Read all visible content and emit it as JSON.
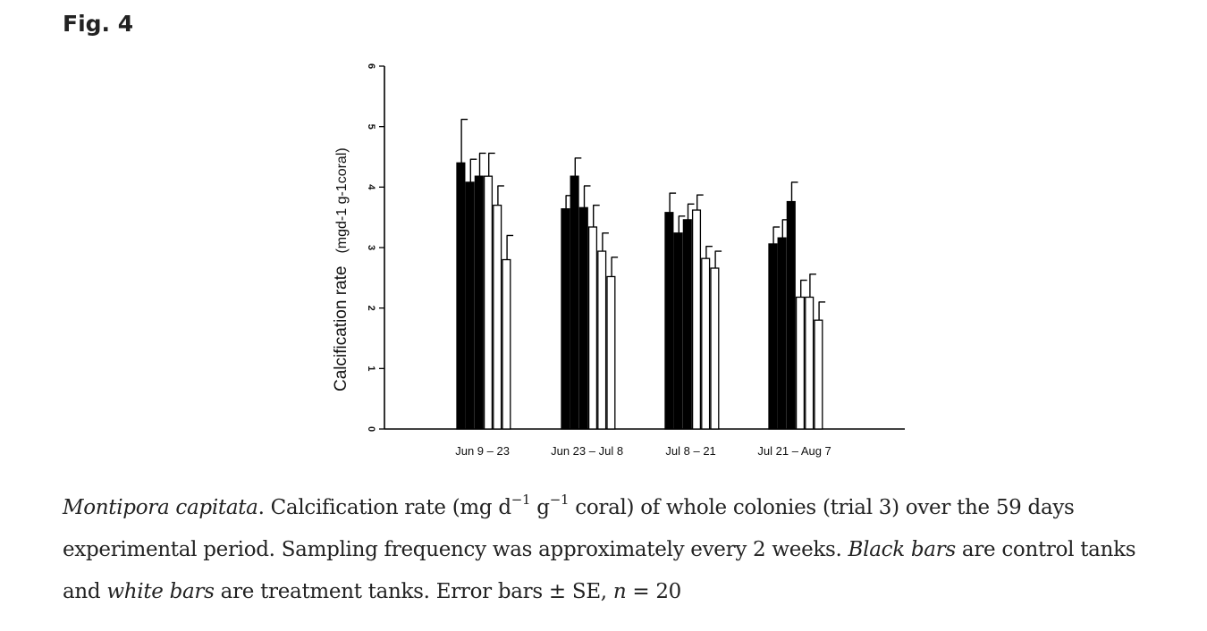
{
  "figure": {
    "label": "Fig. 4"
  },
  "chart_data": {
    "type": "bar",
    "ylabel_main": "Calcification rate",
    "ylabel_unit": "(mgd-1 g-1coral)",
    "ylim": [
      0,
      6
    ],
    "yticks": [
      "0",
      "1",
      "2",
      "3",
      "4",
      "5",
      "6"
    ],
    "categories": [
      "Jun 9 – 23",
      "Jun 23 – Jul 8",
      "Jul 8 – 21",
      "Jul 21 – Aug 7"
    ],
    "colors": {
      "control": "#000000",
      "treatment": "#ffffff"
    },
    "groups": [
      {
        "category": "Jun 9 – 23",
        "bars": [
          {
            "kind": "control",
            "value": 4.4,
            "se": 0.72
          },
          {
            "kind": "control",
            "value": 4.08,
            "se": 0.38
          },
          {
            "kind": "control",
            "value": 4.18,
            "se": 0.38
          },
          {
            "kind": "treatment",
            "value": 4.18,
            "se": 0.38
          },
          {
            "kind": "treatment",
            "value": 3.7,
            "se": 0.32
          },
          {
            "kind": "treatment",
            "value": 2.8,
            "se": 0.4
          }
        ]
      },
      {
        "category": "Jun 23 – Jul 8",
        "bars": [
          {
            "kind": "control",
            "value": 3.64,
            "se": 0.22
          },
          {
            "kind": "control",
            "value": 4.18,
            "se": 0.3
          },
          {
            "kind": "control",
            "value": 3.66,
            "se": 0.36
          },
          {
            "kind": "treatment",
            "value": 3.34,
            "se": 0.36
          },
          {
            "kind": "treatment",
            "value": 2.94,
            "se": 0.3
          },
          {
            "kind": "treatment",
            "value": 2.52,
            "se": 0.32
          }
        ]
      },
      {
        "category": "Jul 8 – 21",
        "bars": [
          {
            "kind": "control",
            "value": 3.58,
            "se": 0.32
          },
          {
            "kind": "control",
            "value": 3.24,
            "se": 0.28
          },
          {
            "kind": "control",
            "value": 3.46,
            "se": 0.26
          },
          {
            "kind": "treatment",
            "value": 3.62,
            "se": 0.25
          },
          {
            "kind": "treatment",
            "value": 2.82,
            "se": 0.2
          },
          {
            "kind": "treatment",
            "value": 2.66,
            "se": 0.28
          }
        ]
      },
      {
        "category": "Jul 21 – Aug 7",
        "bars": [
          {
            "kind": "control",
            "value": 3.06,
            "se": 0.28
          },
          {
            "kind": "control",
            "value": 3.16,
            "se": 0.3
          },
          {
            "kind": "control",
            "value": 3.76,
            "se": 0.32
          },
          {
            "kind": "treatment",
            "value": 2.18,
            "se": 0.28
          },
          {
            "kind": "treatment",
            "value": 2.18,
            "se": 0.38
          },
          {
            "kind": "treatment",
            "value": 1.8,
            "se": 0.3
          }
        ]
      }
    ]
  },
  "caption": {
    "species": "Montipora capitata",
    "p1": ". Calcification rate (mg d",
    "sup1": "−1",
    "p2": " g",
    "sup2": "−1",
    "p3": " coral) of whole colonies (trial 3) over the 59 days experimental period. Sampling frequency was approximately every 2 weeks. ",
    "black_bars": "Black bars",
    "p4": " are control tanks and ",
    "white_bars": "white bars",
    "p5": " are treatment tanks. Error bars ± SE, ",
    "n_symbol": "n",
    "p6": " = 20"
  }
}
